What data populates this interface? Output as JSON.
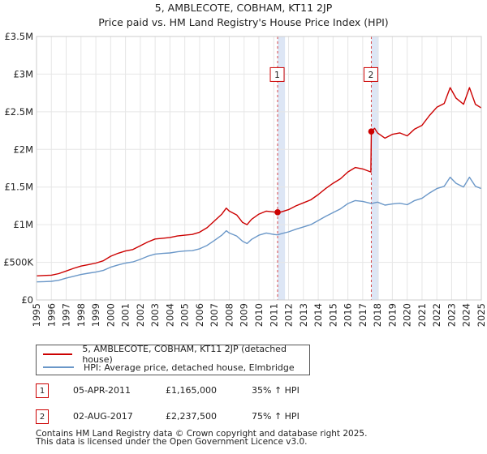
{
  "chart_data": {
    "type": "line",
    "title": "5, AMBLECOTE, COBHAM, KT11 2JP",
    "subtitle": "Price paid vs. HM Land Registry's House Price Index (HPI)",
    "xlabel": "",
    "ylabel": "",
    "xlim": [
      1995,
      2025
    ],
    "ylim": [
      0,
      3500000
    ],
    "grid": true,
    "x_ticks": [
      "1995",
      "1996",
      "1997",
      "1998",
      "1999",
      "2000",
      "2001",
      "2002",
      "2003",
      "2004",
      "2005",
      "2006",
      "2007",
      "2008",
      "2009",
      "2010",
      "2011",
      "2012",
      "2013",
      "2014",
      "2015",
      "2016",
      "2017",
      "2018",
      "2019",
      "2020",
      "2021",
      "2022",
      "2023",
      "2024",
      "2025"
    ],
    "y_ticks": [
      {
        "value": 0,
        "label": "£0"
      },
      {
        "value": 500000,
        "label": "£500K"
      },
      {
        "value": 1000000,
        "label": "£1M"
      },
      {
        "value": 1500000,
        "label": "£1.5M"
      },
      {
        "value": 2000000,
        "label": "£2M"
      },
      {
        "value": 2500000,
        "label": "£2.5M"
      },
      {
        "value": 3000000,
        "label": "£3M"
      },
      {
        "value": 3500000,
        "label": "£3.5M"
      }
    ],
    "series": [
      {
        "name": "5, AMBLECOTE, COBHAM, KT11 2JP (detached house)",
        "color": "#cc0000",
        "points": [
          [
            1995.0,
            320000
          ],
          [
            1995.5,
            325000
          ],
          [
            1996.0,
            330000
          ],
          [
            1996.5,
            350000
          ],
          [
            1997.0,
            385000
          ],
          [
            1997.5,
            420000
          ],
          [
            1998.0,
            450000
          ],
          [
            1998.5,
            470000
          ],
          [
            1999.0,
            490000
          ],
          [
            1999.5,
            520000
          ],
          [
            2000.0,
            580000
          ],
          [
            2000.5,
            620000
          ],
          [
            2001.0,
            650000
          ],
          [
            2001.5,
            670000
          ],
          [
            2002.0,
            720000
          ],
          [
            2002.5,
            770000
          ],
          [
            2003.0,
            810000
          ],
          [
            2003.5,
            820000
          ],
          [
            2004.0,
            830000
          ],
          [
            2004.5,
            850000
          ],
          [
            2005.0,
            860000
          ],
          [
            2005.5,
            870000
          ],
          [
            2006.0,
            900000
          ],
          [
            2006.5,
            960000
          ],
          [
            2007.0,
            1050000
          ],
          [
            2007.5,
            1140000
          ],
          [
            2007.8,
            1220000
          ],
          [
            2008.0,
            1180000
          ],
          [
            2008.5,
            1130000
          ],
          [
            2008.9,
            1030000
          ],
          [
            2009.2,
            1000000
          ],
          [
            2009.5,
            1070000
          ],
          [
            2010.0,
            1140000
          ],
          [
            2010.5,
            1180000
          ],
          [
            2011.0,
            1170000
          ],
          [
            2011.26,
            1165000
          ],
          [
            2011.5,
            1170000
          ],
          [
            2012.0,
            1200000
          ],
          [
            2012.5,
            1250000
          ],
          [
            2013.0,
            1290000
          ],
          [
            2013.5,
            1330000
          ],
          [
            2014.0,
            1400000
          ],
          [
            2014.5,
            1480000
          ],
          [
            2015.0,
            1550000
          ],
          [
            2015.5,
            1610000
          ],
          [
            2016.0,
            1700000
          ],
          [
            2016.5,
            1760000
          ],
          [
            2017.0,
            1740000
          ],
          [
            2017.55,
            1700000
          ],
          [
            2017.58,
            2237500
          ],
          [
            2017.8,
            2280000
          ],
          [
            2018.0,
            2220000
          ],
          [
            2018.5,
            2150000
          ],
          [
            2019.0,
            2200000
          ],
          [
            2019.5,
            2220000
          ],
          [
            2020.0,
            2180000
          ],
          [
            2020.5,
            2270000
          ],
          [
            2021.0,
            2320000
          ],
          [
            2021.5,
            2450000
          ],
          [
            2022.0,
            2560000
          ],
          [
            2022.5,
            2610000
          ],
          [
            2022.9,
            2820000
          ],
          [
            2023.3,
            2680000
          ],
          [
            2023.8,
            2600000
          ],
          [
            2024.2,
            2820000
          ],
          [
            2024.6,
            2600000
          ],
          [
            2025.0,
            2550000
          ]
        ]
      },
      {
        "name": "HPI: Average price, detached house, Elmbridge",
        "color": "#6a97c8",
        "points": [
          [
            1995.0,
            240000
          ],
          [
            1995.5,
            243000
          ],
          [
            1996.0,
            248000
          ],
          [
            1996.5,
            262000
          ],
          [
            1997.0,
            290000
          ],
          [
            1997.5,
            315000
          ],
          [
            1998.0,
            338000
          ],
          [
            1998.5,
            355000
          ],
          [
            1999.0,
            370000
          ],
          [
            1999.5,
            392000
          ],
          [
            2000.0,
            435000
          ],
          [
            2000.5,
            465000
          ],
          [
            2001.0,
            490000
          ],
          [
            2001.5,
            505000
          ],
          [
            2002.0,
            540000
          ],
          [
            2002.5,
            580000
          ],
          [
            2003.0,
            610000
          ],
          [
            2003.5,
            618000
          ],
          [
            2004.0,
            625000
          ],
          [
            2004.5,
            640000
          ],
          [
            2005.0,
            650000
          ],
          [
            2005.5,
            655000
          ],
          [
            2006.0,
            680000
          ],
          [
            2006.5,
            725000
          ],
          [
            2007.0,
            790000
          ],
          [
            2007.5,
            860000
          ],
          [
            2007.8,
            920000
          ],
          [
            2008.0,
            890000
          ],
          [
            2008.5,
            850000
          ],
          [
            2008.9,
            780000
          ],
          [
            2009.2,
            750000
          ],
          [
            2009.5,
            805000
          ],
          [
            2010.0,
            860000
          ],
          [
            2010.5,
            890000
          ],
          [
            2011.0,
            870000
          ],
          [
            2011.26,
            865000
          ],
          [
            2011.5,
            880000
          ],
          [
            2012.0,
            905000
          ],
          [
            2012.5,
            940000
          ],
          [
            2013.0,
            970000
          ],
          [
            2013.5,
            1000000
          ],
          [
            2014.0,
            1055000
          ],
          [
            2014.5,
            1110000
          ],
          [
            2015.0,
            1160000
          ],
          [
            2015.5,
            1210000
          ],
          [
            2016.0,
            1280000
          ],
          [
            2016.5,
            1320000
          ],
          [
            2017.0,
            1310000
          ],
          [
            2017.58,
            1280000
          ],
          [
            2018.0,
            1300000
          ],
          [
            2018.5,
            1260000
          ],
          [
            2019.0,
            1275000
          ],
          [
            2019.5,
            1285000
          ],
          [
            2020.0,
            1265000
          ],
          [
            2020.5,
            1320000
          ],
          [
            2021.0,
            1350000
          ],
          [
            2021.5,
            1420000
          ],
          [
            2022.0,
            1480000
          ],
          [
            2022.5,
            1510000
          ],
          [
            2022.9,
            1630000
          ],
          [
            2023.3,
            1550000
          ],
          [
            2023.8,
            1500000
          ],
          [
            2024.2,
            1630000
          ],
          [
            2024.6,
            1510000
          ],
          [
            2025.0,
            1480000
          ]
        ]
      }
    ],
    "sales": [
      {
        "label": "1",
        "x": 2011.26,
        "price": 1165000
      },
      {
        "label": "2",
        "x": 2017.58,
        "price": 2237500
      }
    ],
    "sale_band_colors": {
      "band": "#dde6f5",
      "marker_line": "#cc0000",
      "marker_fill": "#cc0000"
    }
  },
  "legend": {
    "items": [
      {
        "label": "5, AMBLECOTE, COBHAM, KT11 2JP (detached house)",
        "color": "#cc0000"
      },
      {
        "label": "HPI: Average price, detached house, Elmbridge",
        "color": "#6a97c8"
      }
    ]
  },
  "sales_table": [
    {
      "num": "1",
      "date": "05-APR-2011",
      "price": "£1,165,000",
      "hpi": "35% ↑ HPI"
    },
    {
      "num": "2",
      "date": "02-AUG-2017",
      "price": "£2,237,500",
      "hpi": "75% ↑ HPI"
    }
  ],
  "footer": {
    "line1": "Contains HM Land Registry data © Crown copyright and database right 2025.",
    "line2": "This data is licensed under the Open Government Licence v3.0."
  }
}
